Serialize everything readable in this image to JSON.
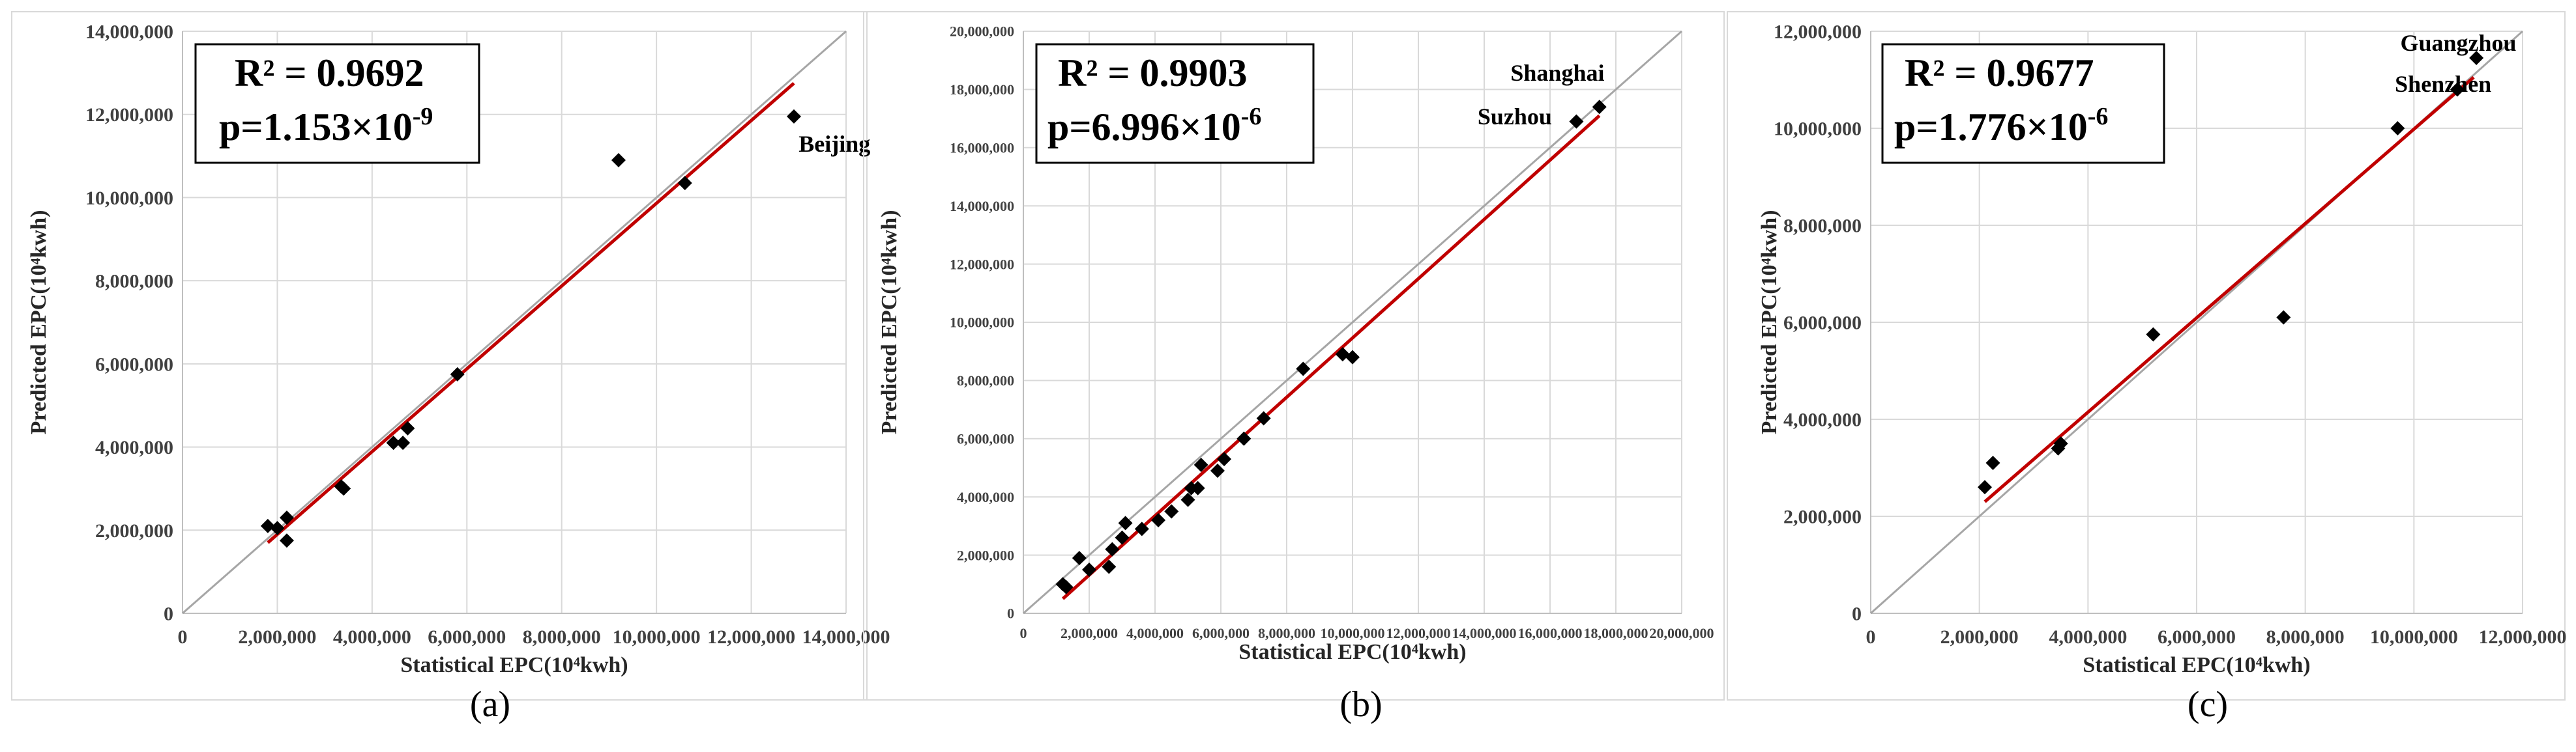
{
  "chart_data": [
    {
      "type": "scatter",
      "panel_label": "(a)",
      "xlabel": "Statistical EPC(10⁴kwh)",
      "ylabel": "Predicted EPC(10⁴kwh)",
      "xlim": [
        0,
        14000000
      ],
      "ylim": [
        0,
        14000000
      ],
      "xticks": [
        0,
        2000000,
        4000000,
        6000000,
        8000000,
        10000000,
        12000000,
        14000000
      ],
      "yticks": [
        0,
        2000000,
        4000000,
        6000000,
        8000000,
        10000000,
        12000000,
        14000000
      ],
      "xtick_labels": [
        "0",
        "2,000,000",
        "4,000,000",
        "6,000,000",
        "8,000,000",
        "10,000,000",
        "12,000,000",
        "14,000,000"
      ],
      "ytick_labels": [
        "0",
        "2,000,000",
        "4,000,000",
        "6,000,000",
        "8,000,000",
        "10,000,000",
        "12,000,000",
        "14,000,000"
      ],
      "r2_text": "R² = 0.9692",
      "p_text": "p=1.153×10",
      "p_exp": "-9",
      "points": [
        {
          "x": 1800000,
          "y": 2100000
        },
        {
          "x": 2000000,
          "y": 2050000
        },
        {
          "x": 2200000,
          "y": 2300000
        },
        {
          "x": 2200000,
          "y": 1750000
        },
        {
          "x": 3350000,
          "y": 3050000
        },
        {
          "x": 3400000,
          "y": 3000000
        },
        {
          "x": 4450000,
          "y": 4100000
        },
        {
          "x": 4650000,
          "y": 4100000
        },
        {
          "x": 4750000,
          "y": 4450000
        },
        {
          "x": 5800000,
          "y": 5750000
        },
        {
          "x": 9200000,
          "y": 10900000
        },
        {
          "x": 10600000,
          "y": 10350000
        },
        {
          "x": 12900000,
          "y": 11950000
        }
      ],
      "trendline": {
        "x": [
          1800000,
          12900000
        ],
        "y": [
          1700000,
          12750000
        ]
      },
      "annotations": [
        {
          "text": "Beijing",
          "x": 13000000,
          "y": 11100000
        }
      ]
    },
    {
      "type": "scatter",
      "panel_label": "(b)",
      "xlabel": "Statistical EPC(10⁴kwh)",
      "ylabel": "Predicted EPC(10⁴kwh)",
      "xlim": [
        0,
        20000000
      ],
      "ylim": [
        0,
        20000000
      ],
      "xticks": [
        0,
        2000000,
        4000000,
        6000000,
        8000000,
        10000000,
        12000000,
        14000000,
        16000000,
        18000000,
        20000000
      ],
      "yticks": [
        0,
        2000000,
        4000000,
        6000000,
        8000000,
        10000000,
        12000000,
        14000000,
        16000000,
        18000000,
        20000000
      ],
      "xtick_labels": [
        "0",
        "2,000,000",
        "4,000,000",
        "6,000,000",
        "8,000,000",
        "10,000,000",
        "12,000,000",
        "14,000,000",
        "16,000,000",
        "18,000,000",
        "20,000,000"
      ],
      "ytick_labels": [
        "0",
        "2,000,000",
        "4,000,000",
        "6,000,000",
        "8,000,000",
        "10,000,000",
        "12,000,000",
        "14,000,000",
        "16,000,000",
        "18,000,000",
        "20,000,000"
      ],
      "r2_text": "R² = 0.9903",
      "p_text": "p=6.996×10",
      "p_exp": "-6",
      "points": [
        {
          "x": 1200000,
          "y": 1000000
        },
        {
          "x": 1300000,
          "y": 900000
        },
        {
          "x": 1700000,
          "y": 1900000
        },
        {
          "x": 2000000,
          "y": 1500000
        },
        {
          "x": 2600000,
          "y": 1600000
        },
        {
          "x": 2700000,
          "y": 2200000
        },
        {
          "x": 3000000,
          "y": 2600000
        },
        {
          "x": 3100000,
          "y": 3100000
        },
        {
          "x": 3600000,
          "y": 2900000
        },
        {
          "x": 4100000,
          "y": 3200000
        },
        {
          "x": 4500000,
          "y": 3500000
        },
        {
          "x": 5000000,
          "y": 3900000
        },
        {
          "x": 5100000,
          "y": 4300000
        },
        {
          "x": 5300000,
          "y": 4300000
        },
        {
          "x": 5400000,
          "y": 5100000
        },
        {
          "x": 5900000,
          "y": 4900000
        },
        {
          "x": 6100000,
          "y": 5300000
        },
        {
          "x": 6700000,
          "y": 6000000
        },
        {
          "x": 7300000,
          "y": 6700000
        },
        {
          "x": 8500000,
          "y": 8400000
        },
        {
          "x": 9700000,
          "y": 8900000
        },
        {
          "x": 10000000,
          "y": 8800000
        },
        {
          "x": 16800000,
          "y": 16900000
        },
        {
          "x": 17500000,
          "y": 17400000
        }
      ],
      "trendline": {
        "x": [
          1200000,
          17500000
        ],
        "y": [
          500000,
          17100000
        ]
      },
      "annotations": [
        {
          "text": "Shanghai",
          "x": 14800000,
          "y": 18300000
        },
        {
          "text": "Suzhou",
          "x": 13800000,
          "y": 16800000
        }
      ]
    },
    {
      "type": "scatter",
      "panel_label": "(c)",
      "xlabel": "Statistical EPC(10⁴kwh)",
      "ylabel": "Predicted EPC(10⁴kwh)",
      "xlim": [
        0,
        12000000
      ],
      "ylim": [
        0,
        12000000
      ],
      "xticks": [
        0,
        2000000,
        4000000,
        6000000,
        8000000,
        10000000,
        12000000
      ],
      "yticks": [
        0,
        2000000,
        4000000,
        6000000,
        8000000,
        10000000,
        12000000
      ],
      "xtick_labels": [
        "0",
        "2,000,000",
        "4,000,000",
        "6,000,000",
        "8,000,000",
        "10,000,000",
        "12,000,000"
      ],
      "ytick_labels": [
        "0",
        "2,000,000",
        "4,000,000",
        "6,000,000",
        "8,000,000",
        "10,000,000",
        "12,000,000"
      ],
      "r2_text": "R² = 0.9677",
      "p_text": "p=1.776×10",
      "p_exp": "-6",
      "points": [
        {
          "x": 2100000,
          "y": 2600000
        },
        {
          "x": 2250000,
          "y": 3100000
        },
        {
          "x": 3450000,
          "y": 3400000
        },
        {
          "x": 3500000,
          "y": 3500000
        },
        {
          "x": 5200000,
          "y": 5750000
        },
        {
          "x": 7600000,
          "y": 6100000
        },
        {
          "x": 9700000,
          "y": 10000000
        },
        {
          "x": 10800000,
          "y": 10800000
        },
        {
          "x": 11150000,
          "y": 11450000
        }
      ],
      "trendline": {
        "x": [
          2100000,
          11100000
        ],
        "y": [
          2300000,
          11050000
        ]
      },
      "annotations": [
        {
          "text": "Guangzhou",
          "x": 9750000,
          "y": 11600000
        },
        {
          "text": "Shenzhen",
          "x": 9650000,
          "y": 10750000
        }
      ]
    }
  ]
}
